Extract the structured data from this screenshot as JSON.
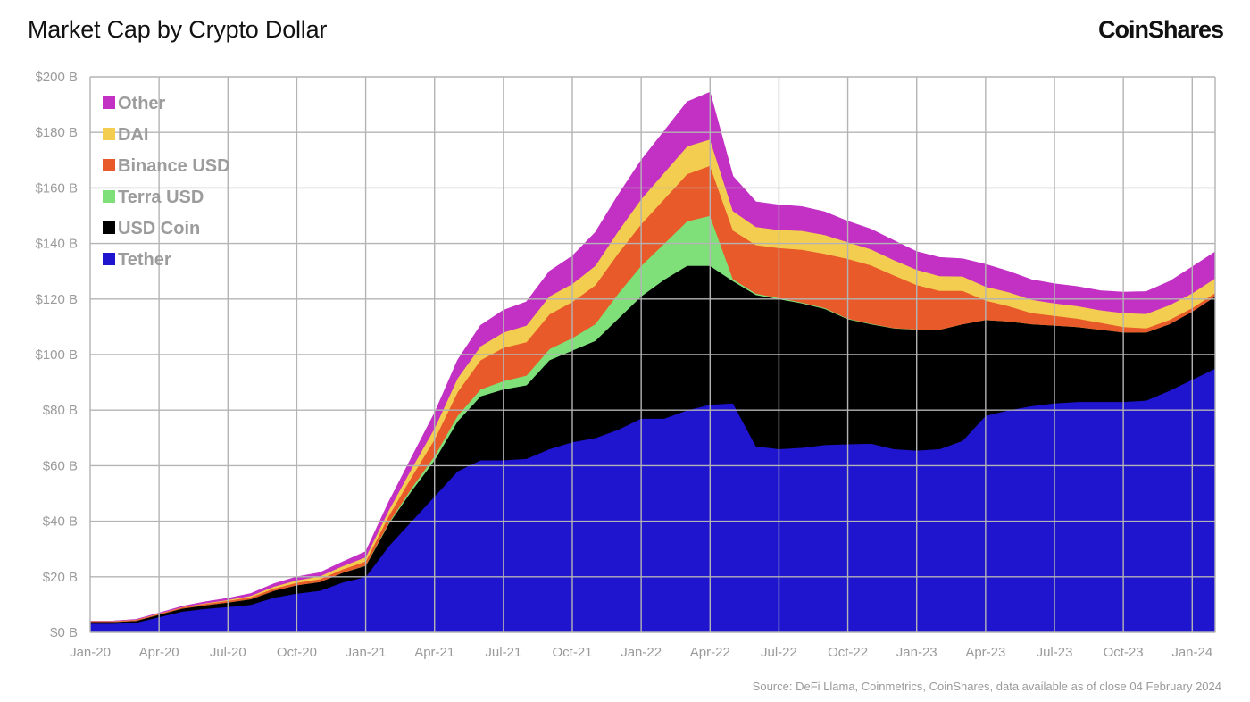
{
  "title": "Market Cap by Crypto Dollar",
  "brand": "CoinShares",
  "source": "Source: DeFi Llama, Coinmetrics, CoinShares, data available as of close 04 February 2024",
  "chart_data": {
    "type": "area",
    "stacked": true,
    "title": "Market Cap by Crypto Dollar",
    "xlabel": "",
    "ylabel": "",
    "ylim": [
      0,
      200
    ],
    "yticks": [
      0,
      20,
      40,
      60,
      80,
      100,
      120,
      140,
      160,
      180,
      200
    ],
    "ytick_labels": [
      "$0 B",
      "$20 B",
      "$40 B",
      "$60 B",
      "$80 B",
      "$100 B",
      "$120 B",
      "$140 B",
      "$160 B",
      "$180 B",
      "$200 B"
    ],
    "xtick_labels": [
      "Jan-20",
      "Apr-20",
      "Jul-20",
      "Oct-20",
      "Jan-21",
      "Apr-21",
      "Jul-21",
      "Oct-21",
      "Jan-22",
      "Apr-22",
      "Jul-22",
      "Oct-22",
      "Jan-23",
      "Apr-23",
      "Jul-23",
      "Oct-23",
      "Jan-24"
    ],
    "grid": true,
    "legend_position": "top-left",
    "x": [
      "Jan-20",
      "Feb-20",
      "Mar-20",
      "Apr-20",
      "May-20",
      "Jun-20",
      "Jul-20",
      "Aug-20",
      "Sep-20",
      "Oct-20",
      "Nov-20",
      "Dec-20",
      "Jan-21",
      "Feb-21",
      "Mar-21",
      "Apr-21",
      "May-21",
      "Jun-21",
      "Jul-21",
      "Aug-21",
      "Sep-21",
      "Oct-21",
      "Nov-21",
      "Dec-21",
      "Jan-22",
      "Feb-22",
      "Mar-22",
      "Apr-22",
      "May-22",
      "Jun-22",
      "Jul-22",
      "Aug-22",
      "Sep-22",
      "Oct-22",
      "Nov-22",
      "Dec-22",
      "Jan-23",
      "Feb-23",
      "Mar-23",
      "Apr-23",
      "May-23",
      "Jun-23",
      "Jul-23",
      "Aug-23",
      "Sep-23",
      "Oct-23",
      "Nov-23",
      "Dec-23",
      "Jan-24",
      "Feb-24"
    ],
    "series": [
      {
        "name": "Tether",
        "color": "#1f15cf",
        "values": [
          3.2,
          3.2,
          3.5,
          5.5,
          7.5,
          8.5,
          9.2,
          10,
          12.5,
          14,
          15,
          18,
          20,
          31,
          40,
          49,
          58,
          62,
          62,
          62.5,
          66,
          68.5,
          70,
          73,
          77,
          77,
          80,
          82,
          82.5,
          67,
          66,
          66.5,
          67.5,
          67.8,
          68,
          66,
          65.5,
          66,
          69,
          78,
          80,
          81.5,
          82.5,
          83,
          83,
          83,
          83.5,
          87,
          91,
          95
        ]
      },
      {
        "name": "USD Coin",
        "color": "#000000",
        "values": [
          0.6,
          0.6,
          0.7,
          0.9,
          1.1,
          1.3,
          1.6,
          2,
          2.5,
          3,
          3.2,
          3.5,
          4,
          8,
          11,
          13,
          18,
          23,
          25.5,
          26.5,
          32,
          33,
          35,
          40,
          44,
          50,
          52,
          50,
          44,
          54.5,
          54,
          52,
          49,
          45,
          43,
          43.5,
          43.5,
          43,
          42,
          34.5,
          32,
          29.5,
          28,
          27,
          26,
          25,
          24.5,
          24,
          24.5,
          26
        ]
      },
      {
        "name": "Terra USD",
        "color": "#7fe07a",
        "values": [
          0,
          0,
          0,
          0,
          0,
          0,
          0,
          0,
          0,
          0,
          0,
          0,
          0.1,
          0.4,
          1,
          1.5,
          2,
          2.5,
          3,
          3.5,
          4,
          4.5,
          6,
          9,
          11,
          13,
          16,
          18,
          0.7,
          0.5,
          0.4,
          0.3,
          0.3,
          0.2,
          0.2,
          0.1,
          0.1,
          0,
          0,
          0,
          0,
          0,
          0,
          0,
          0,
          0,
          0,
          0,
          0,
          0
        ]
      },
      {
        "name": "Binance USD",
        "color": "#e85a2a",
        "values": [
          0.2,
          0.2,
          0.3,
          0.3,
          0.4,
          0.5,
          0.6,
          0.7,
          0.8,
          0.9,
          1,
          1.2,
          1.5,
          2.5,
          4,
          6,
          8.5,
          10.5,
          12,
          12,
          12.5,
          13,
          14,
          14.5,
          15,
          16,
          17,
          18,
          17.5,
          17.5,
          18,
          19,
          19.5,
          21.5,
          21,
          19,
          16,
          14,
          12,
          7,
          5.5,
          4,
          3.5,
          3,
          2.5,
          2,
          1.5,
          1.5,
          1.3,
          1.2
        ]
      },
      {
        "name": "DAI",
        "color": "#f3cd4f",
        "values": [
          0.1,
          0.1,
          0.1,
          0.1,
          0.1,
          0.2,
          0.3,
          0.5,
          0.7,
          0.9,
          1,
          1.2,
          1.5,
          2,
          3,
          4,
          5,
          5,
          5.5,
          6,
          6.5,
          6.5,
          7,
          8,
          9,
          9.5,
          10,
          9.5,
          7,
          6.5,
          6.5,
          6.8,
          6.8,
          6,
          5.8,
          5.5,
          5.5,
          5.3,
          5.2,
          5,
          5,
          4.8,
          4.5,
          4.5,
          4.5,
          5,
          5.2,
          5.3,
          5.3,
          5.3
        ]
      },
      {
        "name": "Other",
        "color": "#c230c4",
        "values": [
          0,
          0,
          0.1,
          0.2,
          0.3,
          0.5,
          0.6,
          0.8,
          1,
          1.2,
          1.3,
          1.5,
          2,
          3,
          4,
          5.5,
          6.5,
          7.5,
          8,
          8.5,
          9,
          10,
          12,
          13,
          14,
          15,
          16,
          17,
          12.5,
          9,
          9,
          8.7,
          8.3,
          7.5,
          7.2,
          7,
          6.5,
          6.7,
          6.3,
          8,
          7.5,
          7.2,
          7,
          7,
          7,
          7.5,
          8,
          8.5,
          9.5,
          9.5
        ]
      }
    ]
  }
}
